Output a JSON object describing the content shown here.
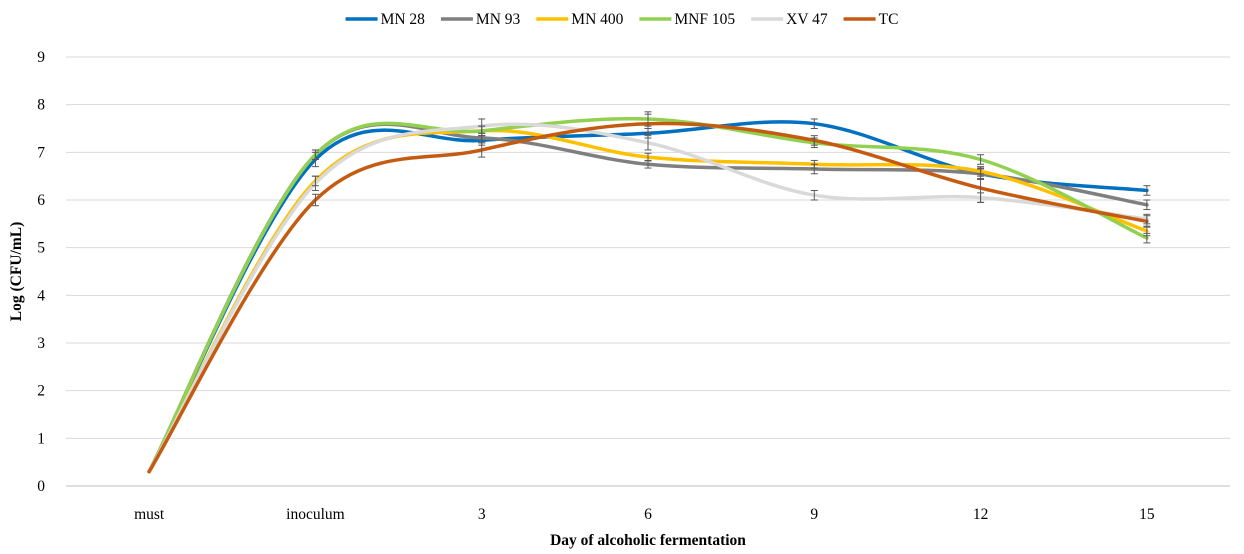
{
  "chart_data": {
    "type": "line",
    "xlabel": "Day of alcoholic fermentation",
    "ylabel": "Log (CFU/mL)",
    "categories": [
      "must",
      "inoculum",
      "3",
      "6",
      "9",
      "12",
      "15"
    ],
    "ylim": [
      0,
      9
    ],
    "yticks": [
      0,
      1,
      2,
      3,
      4,
      5,
      6,
      7,
      8,
      9
    ],
    "grid": true,
    "legend_position": "top",
    "smoothed": true,
    "error_bars": true,
    "series": [
      {
        "name": "MN 28",
        "color": "#0070C0",
        "values": [
          0.3,
          6.85,
          7.25,
          7.4,
          7.6,
          6.55,
          6.2
        ],
        "errors": [
          0,
          0.15,
          0.1,
          0.1,
          0.1,
          0.12,
          0.1
        ]
      },
      {
        "name": "MN 93",
        "color": "#7F7F7F",
        "values": [
          0.3,
          6.95,
          7.3,
          6.75,
          6.65,
          6.55,
          5.9
        ],
        "errors": [
          0,
          0.1,
          0.1,
          0.08,
          0.1,
          0.1,
          0.1
        ]
      },
      {
        "name": "MN 400",
        "color": "#FFC000",
        "values": [
          0.3,
          6.4,
          7.45,
          6.9,
          6.75,
          6.6,
          5.35
        ],
        "errors": [
          0,
          0.1,
          0.1,
          0.08,
          0.08,
          0.1,
          0.1
        ]
      },
      {
        "name": "MNF 105",
        "color": "#92D050",
        "values": [
          0.3,
          6.95,
          7.45,
          7.7,
          7.2,
          6.85,
          5.2
        ],
        "errors": [
          0,
          0.1,
          0.1,
          0.15,
          0.1,
          0.1,
          0.1
        ]
      },
      {
        "name": "XV 47",
        "color": "#D9D9D9",
        "values": [
          0.3,
          6.35,
          7.55,
          7.2,
          6.1,
          6.05,
          5.6
        ],
        "errors": [
          0,
          0.15,
          0.15,
          0.15,
          0.1,
          0.1,
          0.1
        ]
      },
      {
        "name": "TC",
        "color": "#C55A11",
        "values": [
          0.3,
          6.0,
          7.05,
          7.6,
          7.25,
          6.25,
          5.55
        ],
        "errors": [
          0,
          0.12,
          0.15,
          0.2,
          0.1,
          0.3,
          0.12
        ]
      }
    ]
  }
}
